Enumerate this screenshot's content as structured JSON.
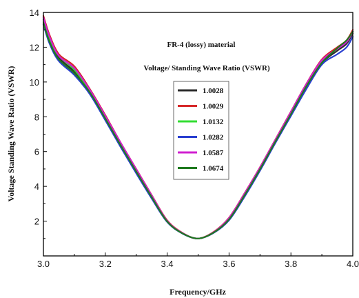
{
  "chart_data": {
    "type": "line",
    "title": "",
    "xlabel": "Frequency/GHz",
    "ylabel": "Voltage Standing Wave Ratio (VSWR)",
    "xlim": [
      3.0,
      4.0
    ],
    "ylim": [
      0,
      14
    ],
    "xticks": [
      3.0,
      3.2,
      3.4,
      3.6,
      3.8,
      4.0
    ],
    "xtick_labels": [
      "3.0",
      "3.2",
      "3.4",
      "3.6",
      "3.8",
      "4.0"
    ],
    "yticks": [
      2,
      4,
      6,
      8,
      10,
      12,
      14
    ],
    "ytick_labels": [
      "2",
      "4",
      "6",
      "8",
      "10",
      "12",
      "14"
    ],
    "grid": false,
    "legend_position": "center",
    "annotations": [
      "FR-4 (lossy) material",
      "Voltage/ Standing Wave Ratio (VSWR)"
    ],
    "x": [
      3.0,
      3.02,
      3.05,
      3.1,
      3.15,
      3.2,
      3.25,
      3.3,
      3.35,
      3.4,
      3.45,
      3.5,
      3.55,
      3.6,
      3.65,
      3.7,
      3.75,
      3.8,
      3.85,
      3.9,
      3.95,
      3.98,
      4.0
    ],
    "series": [
      {
        "name": "1.0028",
        "color": "#2b2b2b",
        "values": [
          13.6,
          12.5,
          11.4,
          10.6,
          9.5,
          8.0,
          6.4,
          4.9,
          3.4,
          2.0,
          1.3,
          1.0,
          1.35,
          2.1,
          3.5,
          5.0,
          6.6,
          8.2,
          9.8,
          11.1,
          11.8,
          12.2,
          12.8
        ]
      },
      {
        "name": "1.0029",
        "color": "#d62728",
        "values": [
          13.8,
          12.7,
          11.6,
          10.9,
          9.6,
          8.1,
          6.5,
          5.0,
          3.5,
          2.05,
          1.32,
          1.0,
          1.38,
          2.2,
          3.6,
          5.1,
          6.7,
          8.3,
          9.9,
          11.3,
          12.0,
          12.4,
          13.0
        ]
      },
      {
        "name": "1.0132",
        "color": "#33dd33",
        "values": [
          13.5,
          12.4,
          11.5,
          10.7,
          9.5,
          8.0,
          6.45,
          4.95,
          3.45,
          2.0,
          1.3,
          1.0,
          1.35,
          2.15,
          3.55,
          5.05,
          6.65,
          8.25,
          9.85,
          11.2,
          11.9,
          12.3,
          12.9
        ]
      },
      {
        "name": "1.0282",
        "color": "#2a3fd0",
        "values": [
          13.3,
          12.2,
          11.2,
          10.4,
          9.3,
          7.8,
          6.25,
          4.75,
          3.3,
          1.95,
          1.28,
          1.0,
          1.32,
          2.05,
          3.4,
          4.9,
          6.5,
          8.05,
          9.6,
          11.0,
          11.6,
          12.0,
          12.6
        ]
      },
      {
        "name": "1.0587",
        "color": "#d020d0",
        "values": [
          13.7,
          12.6,
          11.5,
          10.8,
          9.55,
          8.05,
          6.5,
          4.98,
          3.48,
          2.02,
          1.31,
          1.0,
          1.36,
          2.18,
          3.58,
          5.08,
          6.68,
          8.28,
          9.88,
          11.25,
          11.9,
          12.3,
          12.9
        ]
      },
      {
        "name": "1.0674",
        "color": "#1f7a1f",
        "values": [
          13.4,
          12.3,
          11.3,
          10.5,
          9.4,
          7.9,
          6.35,
          4.85,
          3.38,
          1.98,
          1.29,
          1.0,
          1.34,
          2.1,
          3.48,
          4.98,
          6.58,
          8.15,
          9.75,
          11.1,
          11.95,
          12.4,
          12.9
        ]
      }
    ]
  }
}
